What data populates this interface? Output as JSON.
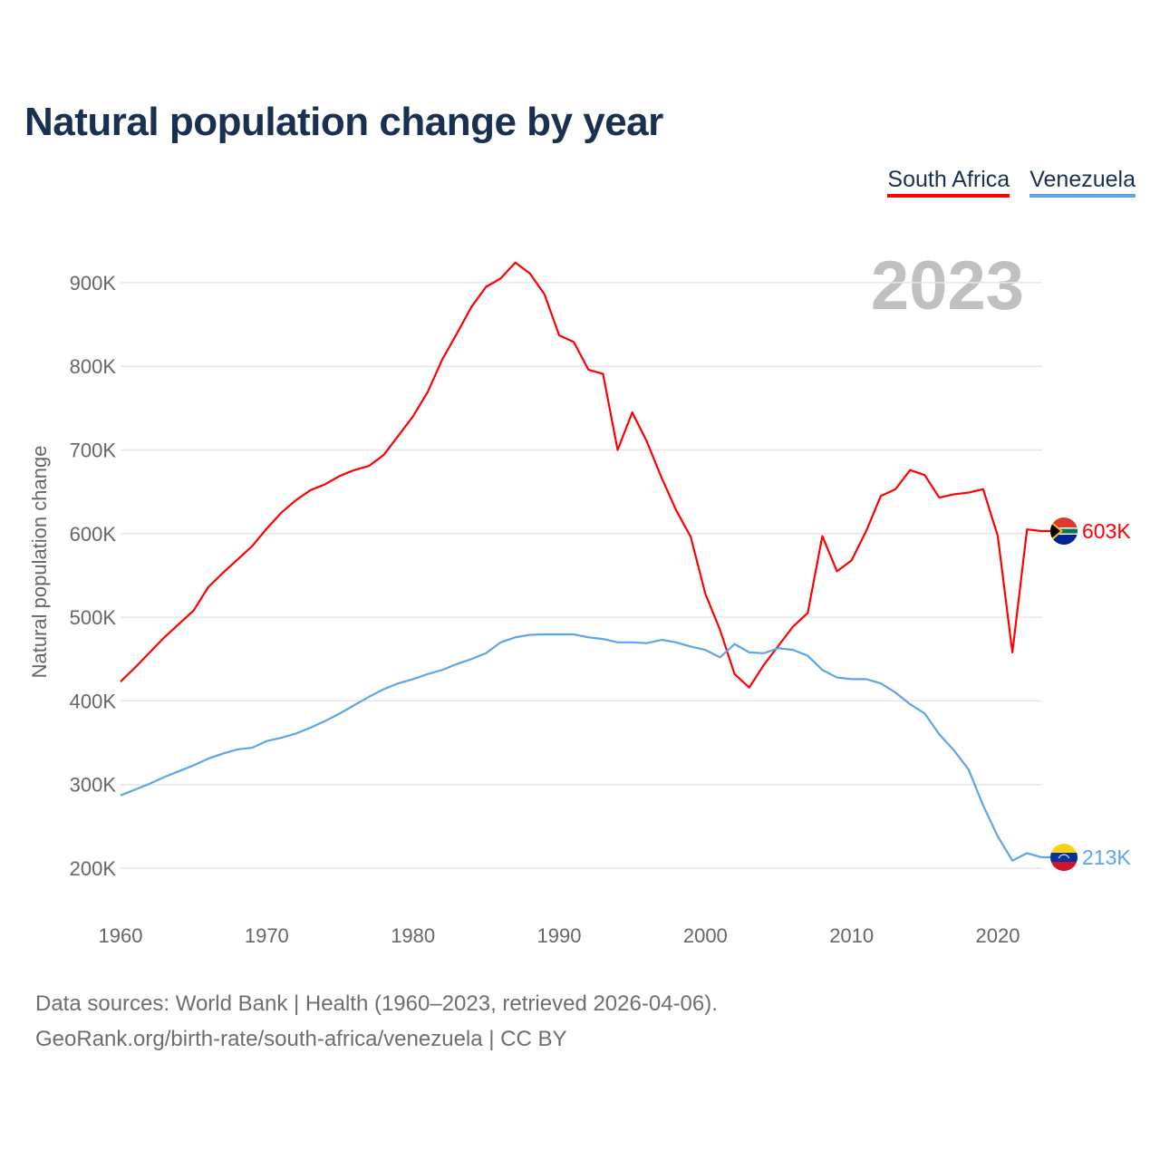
{
  "title": "Natural population change by year",
  "year_watermark": "2023",
  "footer": {
    "line1": "Data sources: World Bank | Health (1960–2023, retrieved 2026-04-06).",
    "line2": "GeoRank.org/birth-rate/south-africa/venezuela | CC BY"
  },
  "chart_data": {
    "type": "line",
    "title": "Natural population change by year",
    "xlabel": "",
    "ylabel": "Natural population change",
    "xlim": [
      1960,
      2023
    ],
    "ylim": [
      150000,
      950000
    ],
    "grid": true,
    "legend_position": "top-right",
    "x_ticks": [
      1960,
      1970,
      1980,
      1990,
      2000,
      2010,
      2020
    ],
    "x_tick_labels": [
      "1960",
      "1970",
      "1980",
      "1990",
      "2000",
      "2010",
      "2020"
    ],
    "y_ticks": [
      200000,
      300000,
      400000,
      500000,
      600000,
      700000,
      800000,
      900000
    ],
    "y_tick_labels": [
      "200K",
      "300K",
      "400K",
      "500K",
      "600K",
      "700K",
      "800K",
      "900K"
    ],
    "x": [
      1960,
      1961,
      1962,
      1963,
      1964,
      1965,
      1966,
      1967,
      1968,
      1969,
      1970,
      1971,
      1972,
      1973,
      1974,
      1975,
      1976,
      1977,
      1978,
      1979,
      1980,
      1981,
      1982,
      1983,
      1984,
      1985,
      1986,
      1987,
      1988,
      1989,
      1990,
      1991,
      1992,
      1993,
      1994,
      1995,
      1996,
      1997,
      1998,
      1999,
      2000,
      2001,
      2002,
      2003,
      2004,
      2005,
      2006,
      2007,
      2008,
      2009,
      2010,
      2011,
      2012,
      2013,
      2014,
      2015,
      2016,
      2017,
      2018,
      2019,
      2020,
      2021,
      2022,
      2023
    ],
    "series": [
      {
        "name": "South Africa",
        "color": "#ff0000",
        "end_label": "603K",
        "values": [
          423,
          440,
          458,
          476,
          492,
          508,
          536,
          553,
          569,
          585,
          606,
          625,
          640,
          652,
          659,
          669,
          676,
          681,
          694,
          717,
          740,
          769,
          808,
          839,
          871,
          895,
          905,
          924,
          911,
          886,
          837,
          829,
          796,
          791,
          700,
          745,
          710,
          667,
          628,
          596,
          528,
          485,
          432,
          416,
          443,
          466,
          489,
          505,
          597,
          555,
          568,
          603,
          645,
          653,
          676,
          670,
          643,
          647,
          649,
          653,
          597,
          458,
          605,
          603
        ]
      },
      {
        "name": "Venezuela",
        "color": "#5da5ea",
        "end_label": "213K",
        "values": [
          287,
          294,
          301,
          309,
          316,
          323,
          331,
          337,
          342,
          344,
          352,
          356,
          361,
          368,
          376,
          385,
          395,
          405,
          414,
          421,
          426,
          432,
          437,
          444,
          450,
          457,
          470,
          476,
          479,
          479.5,
          479.5,
          479.5,
          476,
          474,
          470,
          470,
          469,
          473,
          470,
          465,
          461,
          452,
          468,
          458,
          457,
          463,
          461,
          454,
          437,
          428,
          426,
          426,
          421,
          410,
          396,
          385,
          360,
          341,
          318,
          275,
          238,
          209,
          218,
          213
        ]
      }
    ],
    "value_unit_multiplier": 1000
  }
}
